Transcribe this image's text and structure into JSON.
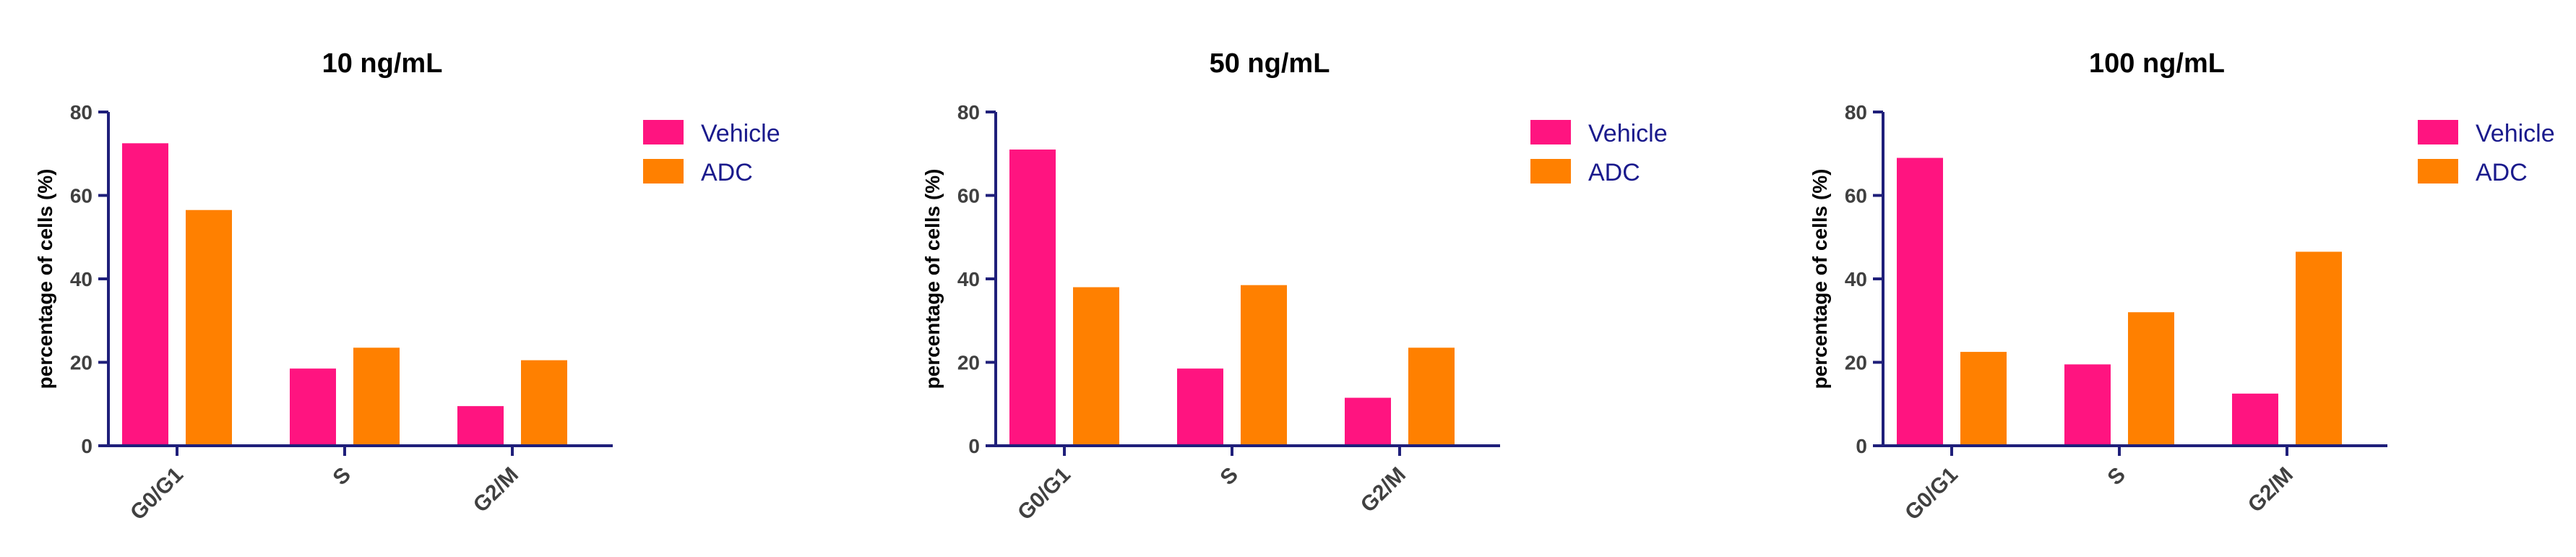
{
  "colors": {
    "Vehicle": "#ff1480",
    "ADC": "#ff8000",
    "axis": "#1f1f7a"
  },
  "chart_data": [
    {
      "type": "bar",
      "title": "10 ng/mL",
      "ylabel": "percentage of cells (%)",
      "categories": [
        "G0/G1",
        "S",
        "G2/M"
      ],
      "ylim": [
        0,
        80
      ],
      "yticks": [
        "0",
        "20",
        "40",
        "60",
        "80"
      ],
      "legend": "right",
      "series": [
        {
          "name": "Vehicle",
          "values": [
            72.5,
            18.5,
            9.5
          ]
        },
        {
          "name": "ADC",
          "values": [
            56.5,
            23.5,
            20.5
          ]
        }
      ]
    },
    {
      "type": "bar",
      "title": "50 ng/mL",
      "ylabel": "percentage of cells (%)",
      "categories": [
        "G0/G1",
        "S",
        "G2/M"
      ],
      "ylim": [
        0,
        80
      ],
      "yticks": [
        "0",
        "20",
        "40",
        "60",
        "80"
      ],
      "legend": "right",
      "series": [
        {
          "name": "Vehicle",
          "values": [
            71,
            18.5,
            11.5
          ]
        },
        {
          "name": "ADC",
          "values": [
            38,
            38.5,
            23.5
          ]
        }
      ]
    },
    {
      "type": "bar",
      "title": "100 ng/mL",
      "ylabel": "percentage of cells (%)",
      "categories": [
        "G0/G1",
        "S",
        "G2/M"
      ],
      "ylim": [
        0,
        80
      ],
      "yticks": [
        "0",
        "20",
        "40",
        "60",
        "80"
      ],
      "legend": "right",
      "series": [
        {
          "name": "Vehicle",
          "values": [
            69,
            19.5,
            12.5
          ]
        },
        {
          "name": "ADC",
          "values": [
            22.5,
            32,
            46.5
          ]
        }
      ]
    }
  ]
}
